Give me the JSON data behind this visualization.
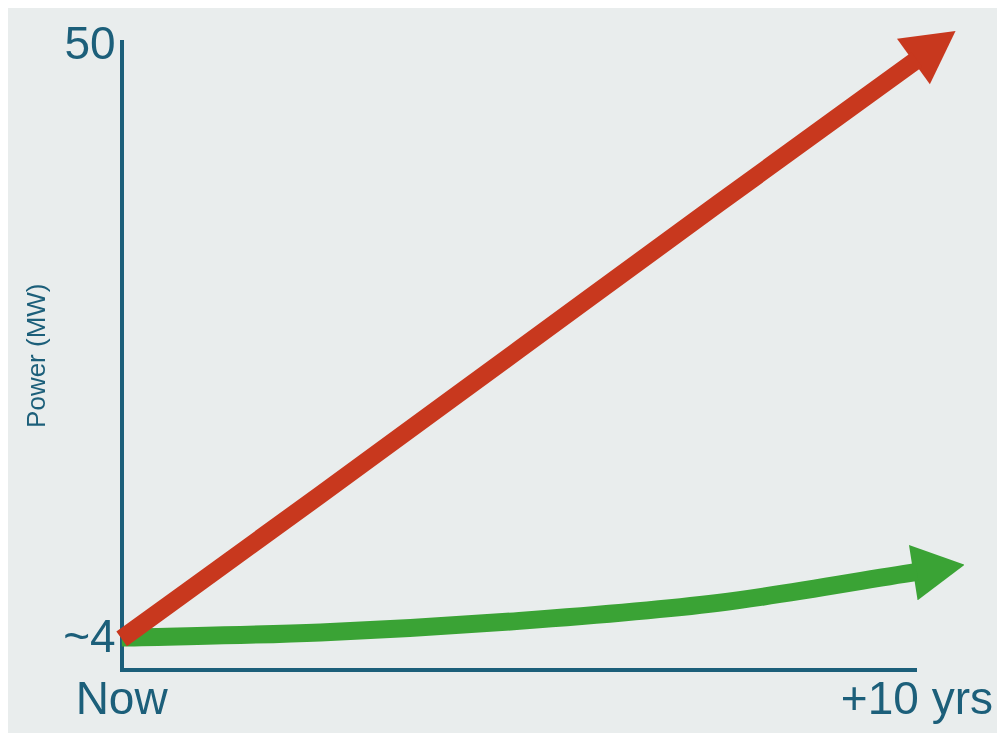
{
  "chart_data": {
    "type": "line",
    "ylabel": "Power (MW)",
    "categories": [
      "Now",
      null,
      null,
      null,
      "+10 yrs"
    ],
    "series": [
      {
        "color": "#c8381e",
        "values": [
          4,
          15.2,
          26.5,
          37.8,
          49
        ]
      },
      {
        "color": "#3aa335",
        "values": [
          4.1,
          4.5,
          5.4,
          6.8,
          9.2
        ]
      }
    ],
    "ylim": [
      1.6,
      50.4
    ],
    "yticks": [
      {
        "value": 4,
        "label": "~4"
      },
      50
    ],
    "grid": false,
    "legend": false,
    "marker": "none",
    "line_style": "solid"
  }
}
